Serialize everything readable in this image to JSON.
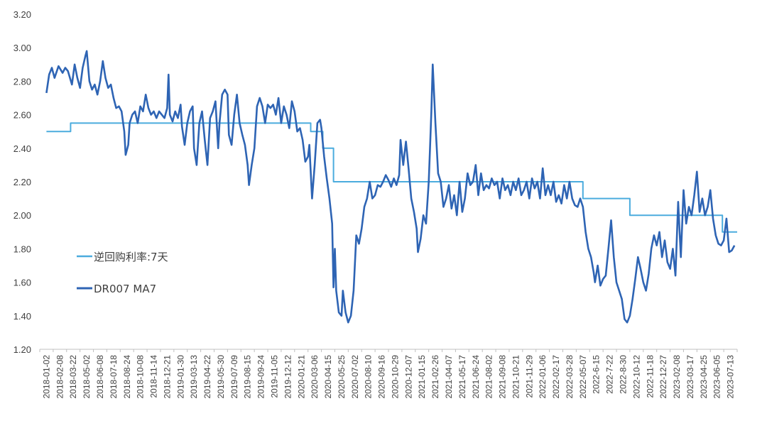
{
  "chart_data": {
    "type": "line",
    "title": "",
    "xlabel": "",
    "ylabel": "",
    "ylim": [
      1.2,
      3.2
    ],
    "yticks": [
      "1.20",
      "1.40",
      "1.60",
      "1.80",
      "2.00",
      "2.20",
      "2.40",
      "2.60",
      "2.80",
      "3.00",
      "3.20"
    ],
    "grid": false,
    "legend_position": "left-middle",
    "x_tick_labels": [
      "2018-01-02",
      "2018-02-08",
      "2018-03-22",
      "2018-05-02",
      "2018-06-08",
      "2018-07-18",
      "2018-08-24",
      "2018-10-08",
      "2018-11-14",
      "2018-12-21",
      "2019-01-30",
      "2019-03-13",
      "2019-04-22",
      "2019-05-30",
      "2019-07-09",
      "2019-08-15",
      "2019-09-24",
      "2019-11-05",
      "2019-12-12",
      "2020-01-21",
      "2020-03-06",
      "2020-04-15",
      "2020-05-25",
      "2020-07-02",
      "2020-08-10",
      "2020-09-16",
      "2020-10-29",
      "2020-12-07",
      "2021-01-15",
      "2021-02-26",
      "2021-04-07",
      "2021-05-17",
      "2021-06-24",
      "2021-08-02",
      "2021-09-08",
      "2021-10-21",
      "2021-11-29",
      "2022-01-06",
      "2022-02-17",
      "2022-03-28",
      "2022-05-07",
      "2022-6-15",
      "2022-7-22",
      "2022-8-30",
      "2022-10-12",
      "2022-11-18",
      "2022-12-27",
      "2023-02-08",
      "2023-03-17",
      "2023-04-25",
      "2023-06-05",
      "2023-07-13"
    ],
    "series": [
      {
        "name": "逆回购利率:7天",
        "color": "#4bacde",
        "style": "step",
        "points": [
          [
            0,
            2.5
          ],
          [
            1.8,
            2.5
          ],
          [
            1.8,
            2.55
          ],
          [
            19.7,
            2.55
          ],
          [
            19.7,
            2.5
          ],
          [
            20.6,
            2.5
          ],
          [
            20.6,
            2.4
          ],
          [
            21.4,
            2.4
          ],
          [
            21.4,
            2.2
          ],
          [
            40.0,
            2.2
          ],
          [
            40.0,
            2.1
          ],
          [
            43.5,
            2.1
          ],
          [
            43.5,
            2.0
          ],
          [
            50.4,
            2.0
          ],
          [
            50.4,
            1.9
          ],
          [
            51.5,
            1.9
          ]
        ]
      },
      {
        "name": "DR007 MA7",
        "color": "#2e64b4",
        "style": "line",
        "points": [
          [
            0,
            2.73
          ],
          [
            0.2,
            2.84
          ],
          [
            0.4,
            2.88
          ],
          [
            0.6,
            2.82
          ],
          [
            0.9,
            2.89
          ],
          [
            1.2,
            2.85
          ],
          [
            1.4,
            2.88
          ],
          [
            1.6,
            2.86
          ],
          [
            1.9,
            2.78
          ],
          [
            2.1,
            2.9
          ],
          [
            2.3,
            2.82
          ],
          [
            2.5,
            2.76
          ],
          [
            2.7,
            2.88
          ],
          [
            2.9,
            2.95
          ],
          [
            3.0,
            2.98
          ],
          [
            3.2,
            2.8
          ],
          [
            3.4,
            2.75
          ],
          [
            3.6,
            2.78
          ],
          [
            3.8,
            2.72
          ],
          [
            4.0,
            2.8
          ],
          [
            4.2,
            2.92
          ],
          [
            4.4,
            2.82
          ],
          [
            4.6,
            2.76
          ],
          [
            4.8,
            2.78
          ],
          [
            5.0,
            2.7
          ],
          [
            5.2,
            2.64
          ],
          [
            5.4,
            2.65
          ],
          [
            5.6,
            2.62
          ],
          [
            5.8,
            2.5
          ],
          [
            5.9,
            2.36
          ],
          [
            6.1,
            2.42
          ],
          [
            6.2,
            2.55
          ],
          [
            6.4,
            2.6
          ],
          [
            6.6,
            2.62
          ],
          [
            6.8,
            2.55
          ],
          [
            7.0,
            2.65
          ],
          [
            7.2,
            2.62
          ],
          [
            7.4,
            2.72
          ],
          [
            7.6,
            2.64
          ],
          [
            7.8,
            2.6
          ],
          [
            8.0,
            2.62
          ],
          [
            8.2,
            2.58
          ],
          [
            8.4,
            2.62
          ],
          [
            8.6,
            2.6
          ],
          [
            8.8,
            2.58
          ],
          [
            9.0,
            2.64
          ],
          [
            9.1,
            2.84
          ],
          [
            9.2,
            2.6
          ],
          [
            9.4,
            2.56
          ],
          [
            9.6,
            2.62
          ],
          [
            9.8,
            2.58
          ],
          [
            10.0,
            2.66
          ],
          [
            10.1,
            2.53
          ],
          [
            10.3,
            2.42
          ],
          [
            10.5,
            2.55
          ],
          [
            10.7,
            2.62
          ],
          [
            10.9,
            2.65
          ],
          [
            11.0,
            2.4
          ],
          [
            11.2,
            2.3
          ],
          [
            11.4,
            2.55
          ],
          [
            11.6,
            2.62
          ],
          [
            11.8,
            2.45
          ],
          [
            12.0,
            2.3
          ],
          [
            12.2,
            2.58
          ],
          [
            12.4,
            2.62
          ],
          [
            12.6,
            2.68
          ],
          [
            12.8,
            2.4
          ],
          [
            12.9,
            2.55
          ],
          [
            13.1,
            2.72
          ],
          [
            13.3,
            2.75
          ],
          [
            13.5,
            2.72
          ],
          [
            13.6,
            2.48
          ],
          [
            13.8,
            2.42
          ],
          [
            14.0,
            2.6
          ],
          [
            14.2,
            2.72
          ],
          [
            14.4,
            2.55
          ],
          [
            14.6,
            2.48
          ],
          [
            14.8,
            2.42
          ],
          [
            15.0,
            2.3
          ],
          [
            15.1,
            2.18
          ],
          [
            15.3,
            2.3
          ],
          [
            15.5,
            2.4
          ],
          [
            15.7,
            2.65
          ],
          [
            15.9,
            2.7
          ],
          [
            16.1,
            2.65
          ],
          [
            16.3,
            2.55
          ],
          [
            16.5,
            2.66
          ],
          [
            16.7,
            2.64
          ],
          [
            16.9,
            2.66
          ],
          [
            17.1,
            2.6
          ],
          [
            17.3,
            2.7
          ],
          [
            17.5,
            2.55
          ],
          [
            17.7,
            2.65
          ],
          [
            17.9,
            2.6
          ],
          [
            18.1,
            2.52
          ],
          [
            18.3,
            2.68
          ],
          [
            18.5,
            2.62
          ],
          [
            18.7,
            2.5
          ],
          [
            18.9,
            2.52
          ],
          [
            19.1,
            2.45
          ],
          [
            19.3,
            2.32
          ],
          [
            19.5,
            2.35
          ],
          [
            19.6,
            2.42
          ],
          [
            19.8,
            2.1
          ],
          [
            20.0,
            2.3
          ],
          [
            20.2,
            2.55
          ],
          [
            20.4,
            2.57
          ],
          [
            20.5,
            2.52
          ],
          [
            20.7,
            2.35
          ],
          [
            20.9,
            2.22
          ],
          [
            21.1,
            2.1
          ],
          [
            21.3,
            1.95
          ],
          [
            21.4,
            1.57
          ],
          [
            21.5,
            1.8
          ],
          [
            21.6,
            1.55
          ],
          [
            21.8,
            1.42
          ],
          [
            22.0,
            1.4
          ],
          [
            22.1,
            1.55
          ],
          [
            22.3,
            1.42
          ],
          [
            22.5,
            1.36
          ],
          [
            22.7,
            1.4
          ],
          [
            22.9,
            1.55
          ],
          [
            23.1,
            1.88
          ],
          [
            23.3,
            1.83
          ],
          [
            23.5,
            1.92
          ],
          [
            23.7,
            2.05
          ],
          [
            23.9,
            2.1
          ],
          [
            24.1,
            2.2
          ],
          [
            24.3,
            2.1
          ],
          [
            24.5,
            2.12
          ],
          [
            24.7,
            2.18
          ],
          [
            24.9,
            2.17
          ],
          [
            25.1,
            2.2
          ],
          [
            25.3,
            2.24
          ],
          [
            25.5,
            2.21
          ],
          [
            25.7,
            2.17
          ],
          [
            25.9,
            2.22
          ],
          [
            26.1,
            2.18
          ],
          [
            26.3,
            2.24
          ],
          [
            26.4,
            2.45
          ],
          [
            26.6,
            2.3
          ],
          [
            26.8,
            2.44
          ],
          [
            27.0,
            2.28
          ],
          [
            27.2,
            2.1
          ],
          [
            27.4,
            2.02
          ],
          [
            27.6,
            1.92
          ],
          [
            27.7,
            1.78
          ],
          [
            27.9,
            1.86
          ],
          [
            28.1,
            2.0
          ],
          [
            28.3,
            1.95
          ],
          [
            28.5,
            2.2
          ],
          [
            28.6,
            2.4
          ],
          [
            28.7,
            2.62
          ],
          [
            28.8,
            2.9
          ],
          [
            29.0,
            2.55
          ],
          [
            29.2,
            2.25
          ],
          [
            29.4,
            2.2
          ],
          [
            29.6,
            2.05
          ],
          [
            29.8,
            2.1
          ],
          [
            30.0,
            2.18
          ],
          [
            30.2,
            2.04
          ],
          [
            30.4,
            2.12
          ],
          [
            30.6,
            2.0
          ],
          [
            30.8,
            2.2
          ],
          [
            31.0,
            2.02
          ],
          [
            31.2,
            2.1
          ],
          [
            31.4,
            2.25
          ],
          [
            31.6,
            2.18
          ],
          [
            31.8,
            2.2
          ],
          [
            32.0,
            2.3
          ],
          [
            32.2,
            2.12
          ],
          [
            32.4,
            2.25
          ],
          [
            32.6,
            2.15
          ],
          [
            32.8,
            2.18
          ],
          [
            33.0,
            2.16
          ],
          [
            33.2,
            2.22
          ],
          [
            33.4,
            2.18
          ],
          [
            33.6,
            2.2
          ],
          [
            33.8,
            2.1
          ],
          [
            34.0,
            2.22
          ],
          [
            34.2,
            2.15
          ],
          [
            34.4,
            2.18
          ],
          [
            34.6,
            2.12
          ],
          [
            34.8,
            2.2
          ],
          [
            35.0,
            2.15
          ],
          [
            35.2,
            2.22
          ],
          [
            35.4,
            2.12
          ],
          [
            35.6,
            2.15
          ],
          [
            35.8,
            2.2
          ],
          [
            36.0,
            2.1
          ],
          [
            36.2,
            2.22
          ],
          [
            36.4,
            2.16
          ],
          [
            36.6,
            2.2
          ],
          [
            36.8,
            2.1
          ],
          [
            37.0,
            2.28
          ],
          [
            37.2,
            2.12
          ],
          [
            37.4,
            2.18
          ],
          [
            37.6,
            2.12
          ],
          [
            37.8,
            2.2
          ],
          [
            38.0,
            2.08
          ],
          [
            38.2,
            2.12
          ],
          [
            38.4,
            2.07
          ],
          [
            38.6,
            2.18
          ],
          [
            38.8,
            2.1
          ],
          [
            39.0,
            2.2
          ],
          [
            39.2,
            2.1
          ],
          [
            39.4,
            2.06
          ],
          [
            39.6,
            2.05
          ],
          [
            39.8,
            2.1
          ],
          [
            40.0,
            2.05
          ],
          [
            40.2,
            1.9
          ],
          [
            40.4,
            1.8
          ],
          [
            40.6,
            1.75
          ],
          [
            40.8,
            1.66
          ],
          [
            40.9,
            1.6
          ],
          [
            41.1,
            1.7
          ],
          [
            41.3,
            1.58
          ],
          [
            41.5,
            1.62
          ],
          [
            41.7,
            1.64
          ],
          [
            41.9,
            1.8
          ],
          [
            42.1,
            1.97
          ],
          [
            42.3,
            1.75
          ],
          [
            42.5,
            1.6
          ],
          [
            42.7,
            1.55
          ],
          [
            42.9,
            1.5
          ],
          [
            43.1,
            1.38
          ],
          [
            43.3,
            1.36
          ],
          [
            43.5,
            1.4
          ],
          [
            43.7,
            1.5
          ],
          [
            43.9,
            1.62
          ],
          [
            44.1,
            1.75
          ],
          [
            44.3,
            1.68
          ],
          [
            44.5,
            1.6
          ],
          [
            44.7,
            1.55
          ],
          [
            44.9,
            1.65
          ],
          [
            45.1,
            1.8
          ],
          [
            45.3,
            1.88
          ],
          [
            45.5,
            1.82
          ],
          [
            45.7,
            1.9
          ],
          [
            45.9,
            1.75
          ],
          [
            46.1,
            1.85
          ],
          [
            46.3,
            1.72
          ],
          [
            46.5,
            1.68
          ],
          [
            46.7,
            1.8
          ],
          [
            46.9,
            1.64
          ],
          [
            47.1,
            2.08
          ],
          [
            47.3,
            1.75
          ],
          [
            47.5,
            2.15
          ],
          [
            47.7,
            1.95
          ],
          [
            47.9,
            2.05
          ],
          [
            48.1,
            2.0
          ],
          [
            48.3,
            2.12
          ],
          [
            48.5,
            2.26
          ],
          [
            48.7,
            2.02
          ],
          [
            48.9,
            2.1
          ],
          [
            49.1,
            2.0
          ],
          [
            49.3,
            2.05
          ],
          [
            49.5,
            2.15
          ],
          [
            49.7,
            1.98
          ],
          [
            49.9,
            1.88
          ],
          [
            50.1,
            1.83
          ],
          [
            50.3,
            1.82
          ],
          [
            50.5,
            1.85
          ],
          [
            50.7,
            1.98
          ],
          [
            50.9,
            1.78
          ],
          [
            51.1,
            1.79
          ],
          [
            51.3,
            1.82
          ]
        ]
      }
    ]
  }
}
